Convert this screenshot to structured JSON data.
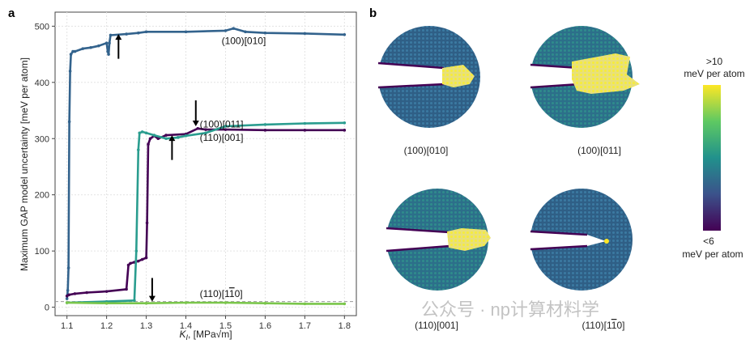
{
  "panel_a_label": "a",
  "panel_b_label": "b",
  "chart_data": {
    "type": "line",
    "title": "",
    "xlabel": "K_I, [MPa√m]",
    "xlabel_main": "K",
    "xlabel_sub": "I",
    "xlabel_unit": ", [MPa√m]",
    "ylabel": "Maximum GAP model uncertainty   [meV per atom]",
    "xlim": [
      1.07,
      1.83
    ],
    "ylim": [
      -15,
      525
    ],
    "xticks": [
      1.1,
      1.2,
      1.3,
      1.4,
      1.5,
      1.6,
      1.7,
      1.8
    ],
    "xtick_labels": [
      "1.1",
      "1.2",
      "1.3",
      "1.4",
      "1.5",
      "1.6",
      "1.7",
      "1.8"
    ],
    "yticks": [
      0,
      100,
      200,
      300,
      400,
      500
    ],
    "ytick_labels": [
      "0",
      "100",
      "200",
      "300",
      "400",
      "500"
    ],
    "grid": true,
    "threshold_line": 10,
    "series": [
      {
        "name": "(100)[010]",
        "color": "#33638d",
        "x": [
          1.1,
          1.102,
          1.104,
          1.106,
          1.108,
          1.11,
          1.115,
          1.12,
          1.14,
          1.16,
          1.18,
          1.2,
          1.203,
          1.205,
          1.207,
          1.21,
          1.25,
          1.28,
          1.3,
          1.4,
          1.5,
          1.52,
          1.55,
          1.6,
          1.7,
          1.8
        ],
        "y": [
          15,
          30,
          70,
          330,
          420,
          450,
          455,
          455,
          460,
          462,
          465,
          470,
          455,
          450,
          470,
          484,
          486,
          488,
          490,
          490,
          492,
          496,
          490,
          488,
          487,
          485
        ]
      },
      {
        "name": "(100)[011]",
        "color": "#440154",
        "x": [
          1.1,
          1.105,
          1.12,
          1.15,
          1.2,
          1.25,
          1.255,
          1.26,
          1.27,
          1.28,
          1.29,
          1.3,
          1.302,
          1.305,
          1.31,
          1.32,
          1.33,
          1.35,
          1.4,
          1.43,
          1.45,
          1.5,
          1.6,
          1.7,
          1.8
        ],
        "y": [
          20,
          22,
          24,
          26,
          28,
          32,
          75,
          78,
          80,
          82,
          85,
          88,
          150,
          290,
          300,
          305,
          300,
          306,
          308,
          318,
          316,
          316,
          315,
          315,
          315
        ]
      },
      {
        "name": "(110)[001]",
        "color": "#2a9d8f",
        "x": [
          1.1,
          1.2,
          1.27,
          1.275,
          1.28,
          1.283,
          1.29,
          1.3,
          1.32,
          1.35,
          1.38,
          1.4,
          1.45,
          1.5,
          1.6,
          1.7,
          1.8
        ],
        "y": [
          8,
          10,
          12,
          100,
          280,
          310,
          312,
          310,
          306,
          300,
          302,
          305,
          310,
          322,
          325,
          327,
          328
        ]
      },
      {
        "name": "(110)[1-10]",
        "color": "#7ac64a",
        "x": [
          1.1,
          1.2,
          1.3,
          1.4,
          1.5,
          1.6,
          1.7,
          1.8
        ],
        "y": [
          8,
          7,
          7,
          8,
          8,
          7,
          6,
          6
        ]
      }
    ],
    "annotations": [
      {
        "text": "(100)[010]",
        "x": 1.49,
        "y": 468
      },
      {
        "text": "(100)[011]",
        "x": 1.435,
        "y": 320
      },
      {
        "text": "(110)[001]",
        "x": 1.435,
        "y": 296
      },
      {
        "text": "(110)[1",
        "text_bar": "1",
        "text_end": "0]",
        "x": 1.435,
        "y": 18
      }
    ],
    "arrows": [
      {
        "x": 1.23,
        "y_from": 442,
        "y_to": 486,
        "direction": "up"
      },
      {
        "x": 1.425,
        "y_from": 368,
        "y_to": 322,
        "direction": "down"
      },
      {
        "x": 1.365,
        "y_from": 262,
        "y_to": 306,
        "direction": "up"
      },
      {
        "x": 1.315,
        "y_from": 52,
        "y_to": 10,
        "direction": "down"
      }
    ]
  },
  "panel_b": {
    "labels": [
      "(100)[010]",
      "(100)[011]",
      "(110)[001]",
      "(110)[1",
      "1",
      "0]"
    ],
    "colorbar": {
      "top_line1": ">10",
      "top_line2": "meV per atom",
      "bottom_line1": "<6",
      "bottom_line2": "meV per atom",
      "colors": [
        "#fde725",
        "#5ec962",
        "#21918c",
        "#3b528b",
        "#440154"
      ]
    }
  },
  "watermark": "公众号 · np计算材料学"
}
